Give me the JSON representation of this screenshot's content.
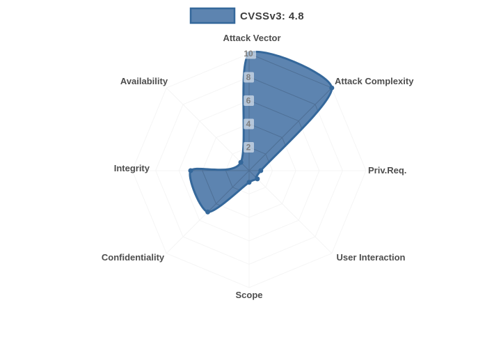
{
  "legend": {
    "label": "CVSSv3: 4.8"
  },
  "chart_data": {
    "type": "radar",
    "title": "",
    "categories": [
      "Attack Vector",
      "Attack Complexity",
      "Priv.Req.",
      "User Interaction",
      "Scope",
      "Confidentiality",
      "Integrity",
      "Availability"
    ],
    "series": [
      {
        "name": "CVSSv3: 4.8",
        "values": [
          10,
          10,
          1,
          1,
          1,
          5,
          5,
          1
        ]
      }
    ],
    "radial_ticks": [
      2,
      4,
      6,
      8,
      10
    ],
    "radial_range": [
      0,
      10
    ],
    "legend_position": "top-center",
    "grid": "on",
    "colors": {
      "line": "#35689b",
      "fill": "rgba(53,101,156,0.80)",
      "grid_inside": "rgba(0,0,0,0.14)",
      "grid_outside": "rgba(0,0,0,0.045)",
      "tick_text": "#7d7d7d",
      "label_text": "#4d4d4d",
      "legend_text": "#3d3d3d"
    }
  }
}
